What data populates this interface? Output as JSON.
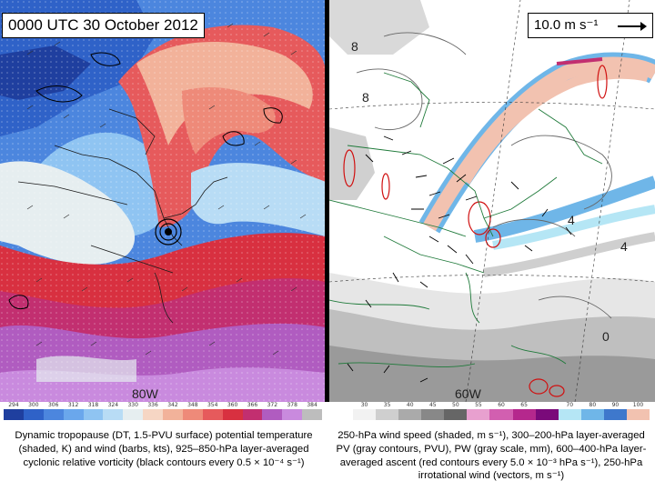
{
  "left": {
    "title": "0000 UTC 30 October 2012",
    "colorbar_ticks": [
      "294",
      "300",
      "306",
      "312",
      "318",
      "324",
      "330",
      "336",
      "342",
      "348",
      "354",
      "360",
      "366",
      "372",
      "378",
      "384"
    ],
    "colorbar_colors": [
      "#1f3f9f",
      "#2f62c8",
      "#4c86de",
      "#6aa7ec",
      "#8fc4f2",
      "#b8dcf5",
      "#e6eef0",
      "#f6d6c4",
      "#f2b29a",
      "#ee8a79",
      "#e65a5c",
      "#d83040",
      "#c22f70",
      "#b05cc0",
      "#c98ade",
      "#bdbdbd"
    ],
    "caption": "Dynamic tropopause (DT, 1.5-PVU surface) potential temperature (shaded, K) and wind (barbs, kts), 925–850-hPa layer-averaged cyclonic relative vorticity (black contours every 0.5 × 10⁻⁴ s⁻¹)",
    "meridian_label": "80W"
  },
  "right": {
    "reference_vector": "10.0 m s⁻¹",
    "colorbar_ticks": [
      "30",
      "35",
      "40",
      "45",
      "50",
      "55",
      "60",
      "65",
      "",
      "70",
      "80",
      "90",
      "100"
    ],
    "colorbar_colors": [
      "#f2f2f2",
      "#cfcfcf",
      "#aaaaaa",
      "#888888",
      "#666666",
      "#e8a0cf",
      "#d25fb0",
      "#b5288d",
      "#7a0a7a",
      "#b5e6f5",
      "#6fb6e8",
      "#3e78cc",
      "#f2c2b0"
    ],
    "caption": "250-hPa wind speed (shaded, m s⁻¹), 300–200-hPa layer-averaged PV (gray contours, PVU), PW (gray scale, mm), 600–400-hPa layer-averaged ascent (red contours every 5.0 × 10⁻³ hPa s⁻¹), 250-hPa irrotational wind (vectors, m s⁻¹)",
    "meridian_label": "60W",
    "contour_labels": [
      "8",
      "8",
      "4",
      "0",
      "4"
    ]
  }
}
